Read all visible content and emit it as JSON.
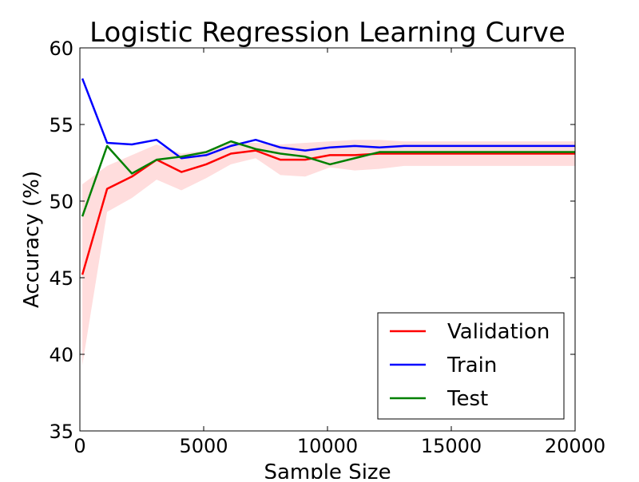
{
  "chart_data": {
    "type": "line",
    "title": "Logistic Regression Learning Curve",
    "xlabel": "Sample Size",
    "ylabel": "Accuracy (%)",
    "xlim": [
      0,
      20000
    ],
    "ylim": [
      35,
      60
    ],
    "xticks": [
      0,
      5000,
      10000,
      15000,
      20000
    ],
    "yticks": [
      35,
      40,
      45,
      50,
      55,
      60
    ],
    "grid": false,
    "legend_position": "lower-right",
    "x": [
      100,
      1100,
      2100,
      3100,
      4100,
      5100,
      6100,
      7100,
      8100,
      9100,
      10100,
      11100,
      12100,
      13100,
      14100,
      15100,
      16100,
      17100,
      18100,
      19100,
      20000
    ],
    "series": [
      {
        "name": "Validation",
        "color": "#ff0000",
        "values": [
          45.2,
          50.8,
          51.6,
          52.7,
          51.9,
          52.4,
          53.1,
          53.3,
          52.7,
          52.7,
          53.0,
          53.0,
          53.1,
          53.1,
          53.1,
          53.1,
          53.1,
          53.1,
          53.1,
          53.1,
          53.1
        ],
        "band_lower": [
          39.3,
          49.3,
          50.2,
          51.4,
          50.7,
          51.5,
          52.4,
          52.8,
          51.7,
          51.6,
          52.2,
          52.0,
          52.1,
          52.3,
          52.3,
          52.3,
          52.3,
          52.3,
          52.3,
          52.3,
          52.3
        ],
        "band_upper": [
          51.1,
          52.3,
          53.0,
          53.7,
          53.1,
          53.3,
          53.8,
          53.8,
          53.7,
          53.8,
          53.9,
          54.0,
          54.0,
          53.9,
          53.9,
          53.9,
          53.9,
          53.9,
          53.9,
          53.9,
          53.9
        ],
        "band_color": "#ffdddd"
      },
      {
        "name": "Train",
        "color": "#0000ff",
        "values": [
          58.0,
          53.8,
          53.7,
          54.0,
          52.8,
          53.0,
          53.6,
          54.0,
          53.5,
          53.3,
          53.5,
          53.6,
          53.5,
          53.6,
          53.6,
          53.6,
          53.6,
          53.6,
          53.6,
          53.6,
          53.6
        ]
      },
      {
        "name": "Test",
        "color": "#008000",
        "values": [
          49.0,
          53.6,
          51.8,
          52.7,
          52.9,
          53.2,
          53.9,
          53.4,
          53.1,
          52.9,
          52.4,
          52.8,
          53.2,
          53.2,
          53.2,
          53.2,
          53.2,
          53.2,
          53.2,
          53.2,
          53.2
        ]
      }
    ]
  }
}
